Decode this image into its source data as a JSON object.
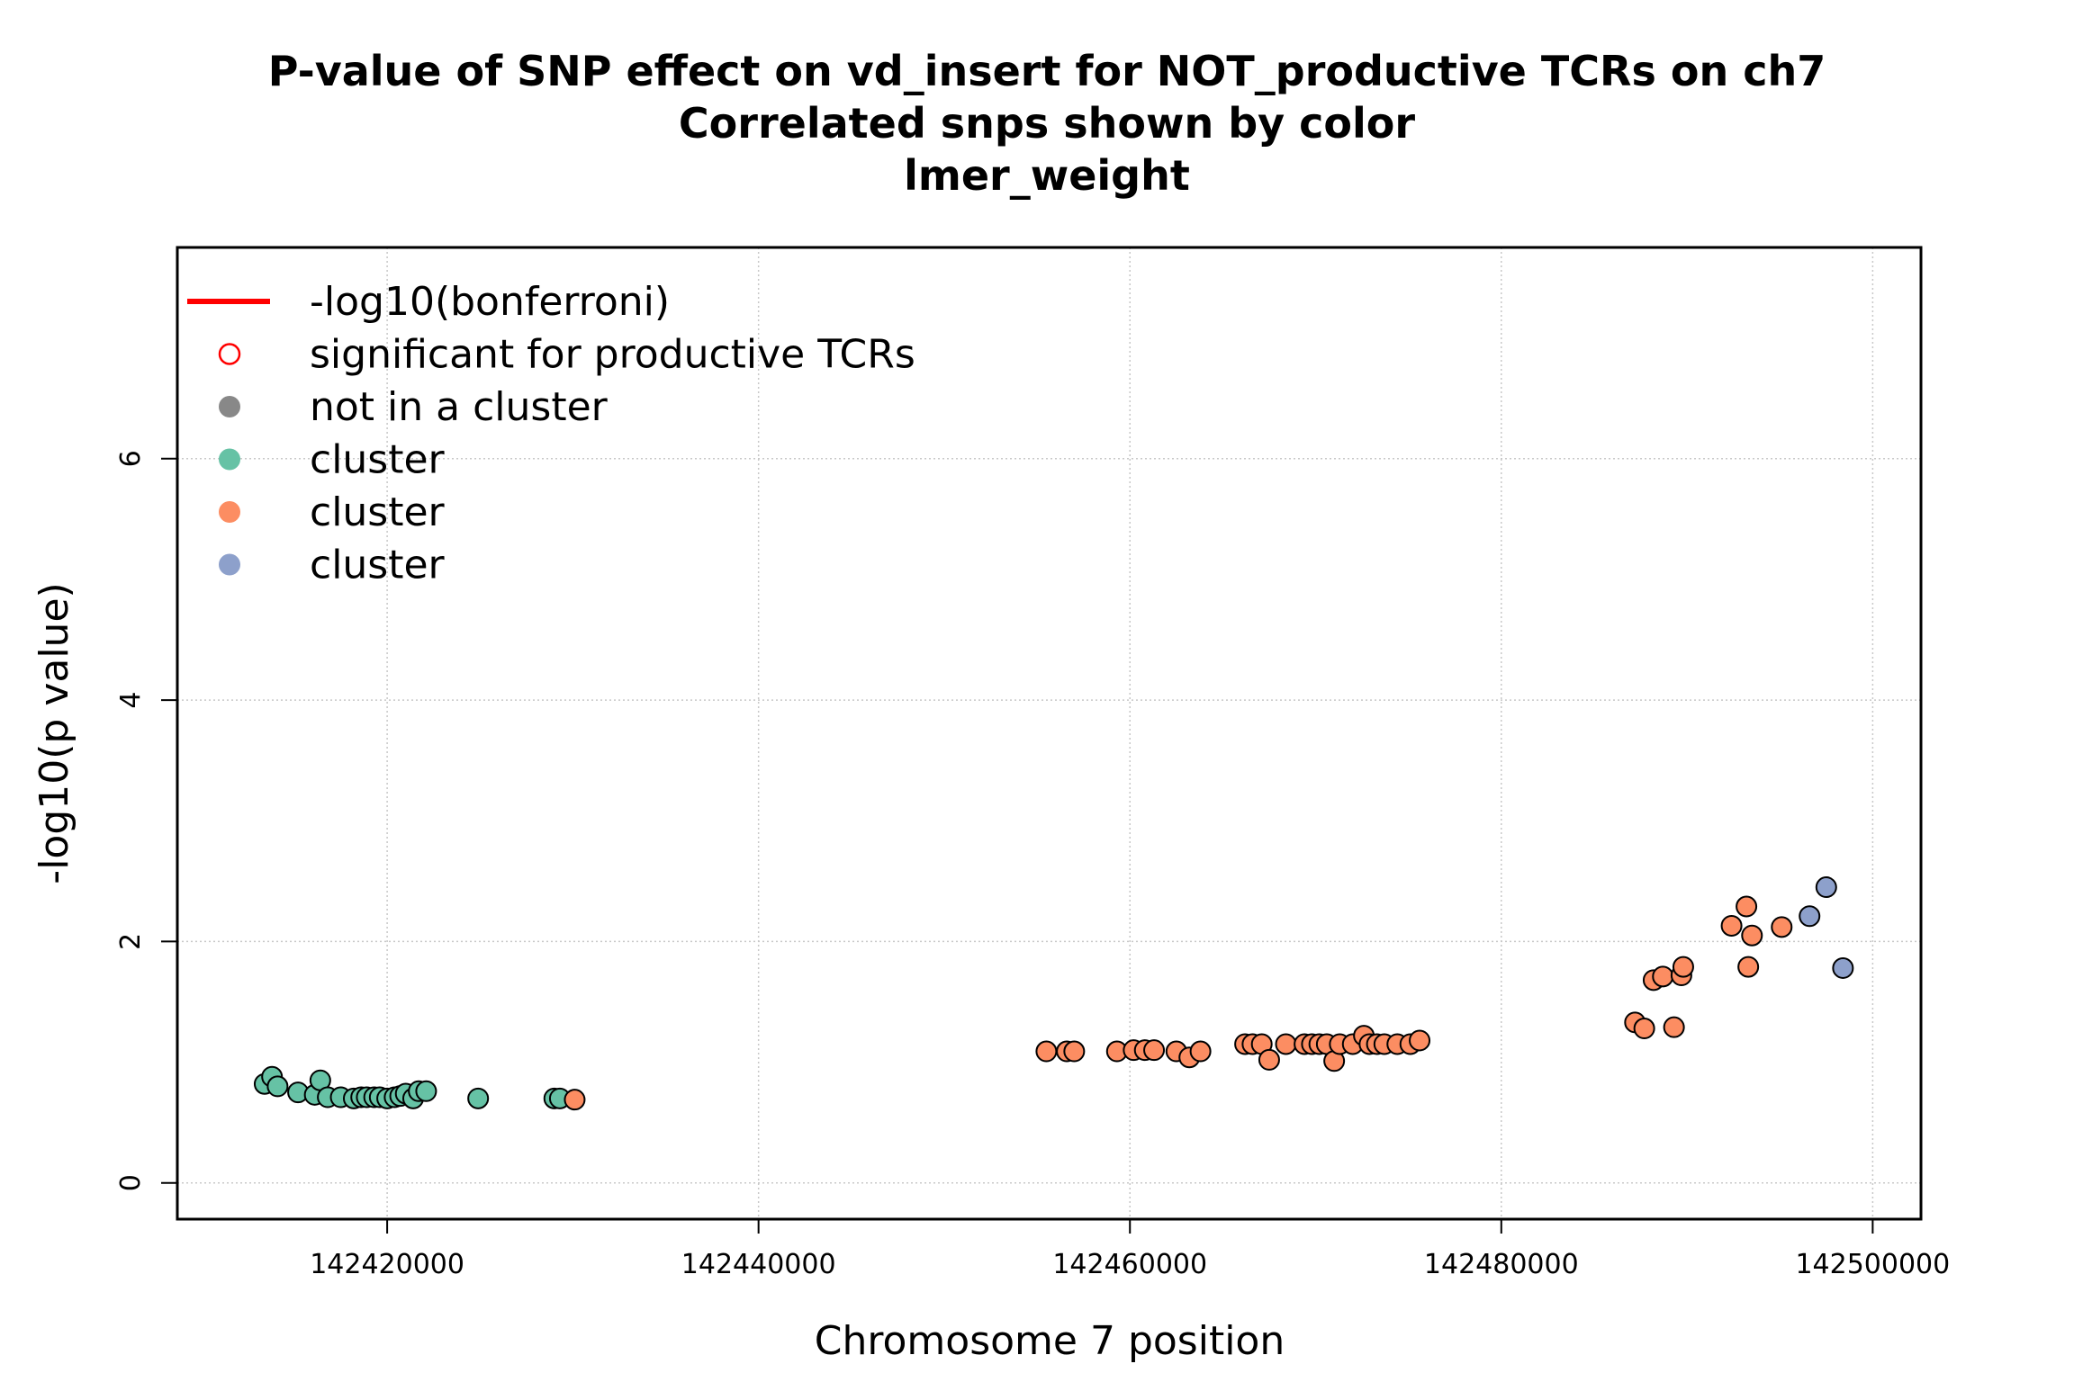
{
  "chart_data": {
    "type": "scatter",
    "title": "P-value of SNP effect on vd_insert for NOT_productive TCRs on ch7",
    "subtitle": "Correlated snps shown by color",
    "subtitle2": "lmer_weight",
    "xlabel": "Chromosome 7 position",
    "ylabel": "-log10(p value)",
    "xlim": [
      142408700,
      142502600
    ],
    "ylim": [
      -0.3,
      7.75
    ],
    "x_ticks": [
      142420000,
      142440000,
      142460000,
      142480000,
      142500000
    ],
    "x_tick_labels": [
      "142420000",
      "142440000",
      "142460000",
      "142480000",
      "142500000"
    ],
    "y_ticks": [
      0,
      2,
      4,
      6
    ],
    "y_tick_labels": [
      "0",
      "2",
      "4",
      "6"
    ],
    "grid": true,
    "bonferroni_line_shown": false,
    "colors": {
      "bonferroni": "#ff0000",
      "significant": "#ff0000",
      "not_in_cluster": "#888888",
      "cluster_green": "#66c2a5",
      "cluster_orange": "#fc8d62",
      "cluster_blue": "#8da0cb"
    },
    "legend": {
      "placement": "top-left",
      "entries": [
        {
          "label": "-log10(bonferroni)",
          "symbol": "line",
          "color": "#ff0000"
        },
        {
          "label": "significant for productive TCRs",
          "symbol": "open-circle",
          "color": "#ff0000"
        },
        {
          "label": "not in a cluster",
          "symbol": "circle",
          "color": "#888888"
        },
        {
          "label": "cluster",
          "symbol": "circle",
          "color": "#66c2a5"
        },
        {
          "label": "cluster",
          "symbol": "circle",
          "color": "#fc8d62"
        },
        {
          "label": "cluster",
          "symbol": "circle",
          "color": "#8da0cb"
        }
      ]
    },
    "series": [
      {
        "color": "#66c2a5",
        "points": [
          [
            142413400,
            0.82
          ],
          [
            142413800,
            0.88
          ],
          [
            142414100,
            0.8
          ],
          [
            142415200,
            0.75
          ],
          [
            142416100,
            0.73
          ],
          [
            142416400,
            0.85
          ],
          [
            142416800,
            0.71
          ],
          [
            142417500,
            0.71
          ],
          [
            142418200,
            0.7
          ],
          [
            142418600,
            0.71
          ],
          [
            142418900,
            0.71
          ],
          [
            142419300,
            0.71
          ],
          [
            142419600,
            0.71
          ],
          [
            142420000,
            0.7
          ],
          [
            142420400,
            0.71
          ],
          [
            142420700,
            0.72
          ],
          [
            142421000,
            0.74
          ],
          [
            142421400,
            0.7
          ],
          [
            142421700,
            0.76
          ],
          [
            142422100,
            0.76
          ],
          [
            142424900,
            0.7
          ],
          [
            142429000,
            0.7
          ],
          [
            142429300,
            0.7
          ]
        ]
      },
      {
        "color": "#fc8d62",
        "points": [
          [
            142430100,
            0.69
          ],
          [
            142455500,
            1.09
          ],
          [
            142456600,
            1.09
          ],
          [
            142457000,
            1.09
          ],
          [
            142459300,
            1.09
          ],
          [
            142460200,
            1.1
          ],
          [
            142460800,
            1.1
          ],
          [
            142461300,
            1.1
          ],
          [
            142462500,
            1.09
          ],
          [
            142463200,
            1.04
          ],
          [
            142463800,
            1.09
          ],
          [
            142466200,
            1.15
          ],
          [
            142466600,
            1.15
          ],
          [
            142467100,
            1.15
          ],
          [
            142467500,
            1.02
          ],
          [
            142468400,
            1.15
          ],
          [
            142469400,
            1.15
          ],
          [
            142469800,
            1.15
          ],
          [
            142470200,
            1.15
          ],
          [
            142470600,
            1.15
          ],
          [
            142471000,
            1.01
          ],
          [
            142471300,
            1.15
          ],
          [
            142472000,
            1.15
          ],
          [
            142472600,
            1.22
          ],
          [
            142472900,
            1.15
          ],
          [
            142473300,
            1.15
          ],
          [
            142473700,
            1.15
          ],
          [
            142474400,
            1.15
          ],
          [
            142475100,
            1.15
          ],
          [
            142475600,
            1.18
          ],
          [
            142487200,
            1.33
          ],
          [
            142487700,
            1.28
          ],
          [
            142488200,
            1.68
          ],
          [
            142488700,
            1.71
          ],
          [
            142489300,
            1.29
          ],
          [
            142489700,
            1.72
          ],
          [
            142489800,
            1.79
          ],
          [
            142492400,
            2.13
          ],
          [
            142493200,
            2.29
          ],
          [
            142493300,
            1.79
          ],
          [
            142493500,
            2.05
          ],
          [
            142495100,
            2.12
          ]
        ]
      },
      {
        "color": "#8da0cb",
        "points": [
          [
            142496600,
            2.21
          ],
          [
            142497500,
            2.45
          ],
          [
            142498400,
            1.78
          ]
        ]
      }
    ]
  }
}
